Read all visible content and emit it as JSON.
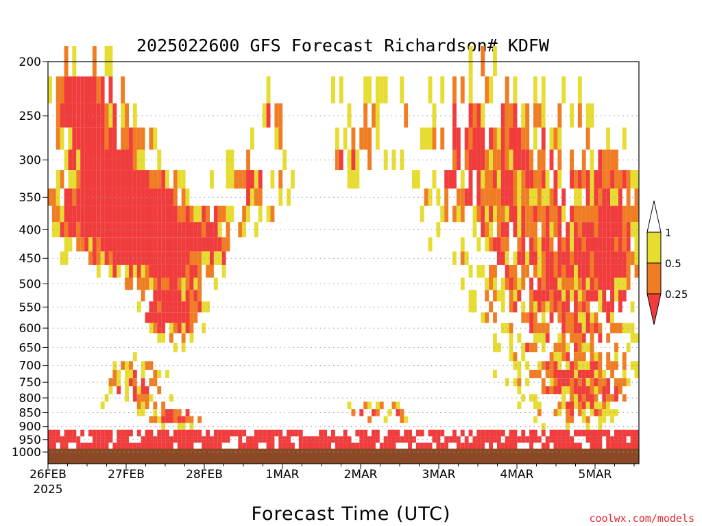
{
  "chart_data": {
    "type": "heatmap",
    "title": "2025022600 GFS Forecast Richardson# KDFW",
    "xlabel": "Forecast Time (UTC)",
    "ylabel": "",
    "credit": "coolwx.com/models",
    "x_ticks": [
      "26FEB",
      "27FEB",
      "28FEB",
      "1MAR",
      "2MAR",
      "3MAR",
      "4MAR",
      "5MAR"
    ],
    "x_tick_sub": "2025",
    "y_ticks": [
      200,
      250,
      300,
      350,
      400,
      450,
      500,
      550,
      600,
      650,
      700,
      750,
      800,
      850,
      900,
      950,
      1000
    ],
    "ylim": [
      1000,
      200
    ],
    "y_scale": "log-pressure",
    "legend": {
      "placement": "right",
      "labels": [
        "1",
        "0.5",
        "0.25"
      ],
      "bins": [
        {
          "range": "0.5-1",
          "color": "#e6dc32"
        },
        {
          "range": "0.25-0.5",
          "color": "#f07d23"
        },
        {
          "range": "<0.25",
          "color": "#f03c3c"
        }
      ]
    },
    "ground_color": "#8b4a25",
    "cells": [
      {
        "x": "26FEB 06Z",
        "p": 225,
        "class": "orange"
      },
      {
        "x": "26FEB 12Z",
        "p": 250,
        "class": "red"
      },
      {
        "x": "26FEB 12Z",
        "p": 350,
        "class": "red"
      },
      {
        "x": "26FEB 12Z",
        "p": 425,
        "class": "red"
      },
      {
        "x": "27FEB 00Z",
        "p": 425,
        "class": "red"
      },
      {
        "x": "27FEB 06Z",
        "p": 475,
        "class": "orange"
      },
      {
        "x": "27FEB 12Z",
        "p": 600,
        "class": "red"
      },
      {
        "x": "4MAR 00Z",
        "p": 275,
        "class": "red"
      },
      {
        "x": "5MAR 12Z",
        "p": 375,
        "class": "red"
      }
    ]
  }
}
